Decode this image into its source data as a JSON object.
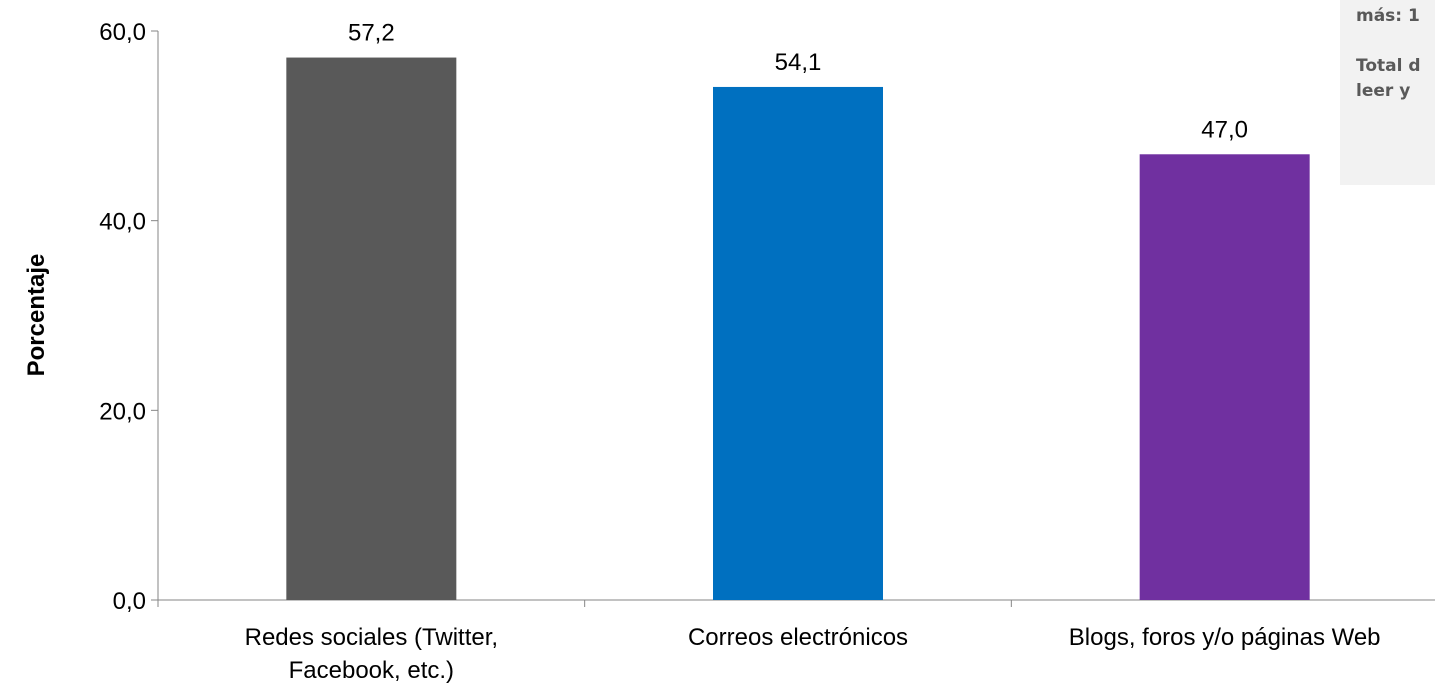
{
  "chart_data": {
    "type": "bar",
    "categories": [
      [
        "Redes sociales (Twitter,",
        "Facebook, etc.)"
      ],
      [
        "Correos electrónicos"
      ],
      [
        "Blogs, foros y/o páginas Web"
      ]
    ],
    "values": [
      57.2,
      54.1,
      47.0
    ],
    "value_labels": [
      "57,2",
      "54,1",
      "47,0"
    ],
    "colors": [
      "#595959",
      "#0070C0",
      "#7030A0"
    ],
    "title": "",
    "xlabel": "",
    "ylabel": "Porcentaje",
    "ylim": [
      0,
      60
    ],
    "yticks": [
      0,
      20,
      40,
      60
    ],
    "ytick_labels": [
      "0,0",
      "20,0",
      "40,0",
      "60,0"
    ],
    "grid": false,
    "legend": "none"
  },
  "note": {
    "line1": "más:  1",
    "line2": "Total d",
    "line3": "leer y"
  }
}
